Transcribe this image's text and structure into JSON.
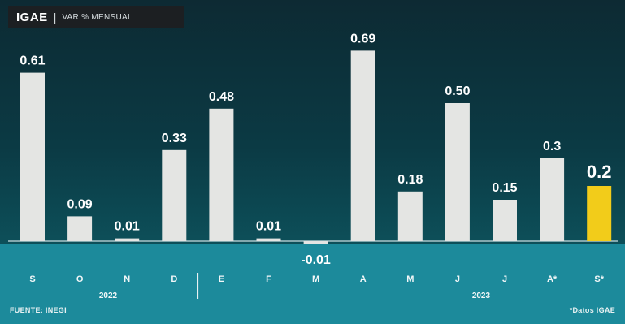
{
  "header": {
    "title": "IGAE",
    "separator": "|",
    "subtitle": "VAR % MENSUAL"
  },
  "footer": {
    "source": "FUENTE: INEGI",
    "note": "*Datos IGAE"
  },
  "colors": {
    "bar": "#e4e5e3",
    "highlight": "#f2cc1a",
    "text": "#ffffff",
    "axis_band": "#1c8a9b"
  },
  "chart_data": {
    "type": "bar",
    "title": "IGAE",
    "subtitle": "VAR % MENSUAL",
    "categories": [
      "S",
      "O",
      "N",
      "D",
      "E",
      "F",
      "M",
      "A",
      "M",
      "J",
      "J",
      "A*",
      "S*"
    ],
    "values": [
      0.61,
      0.09,
      0.01,
      0.33,
      0.48,
      0.01,
      -0.01,
      0.69,
      0.18,
      0.5,
      0.15,
      0.3,
      0.2
    ],
    "value_labels": [
      "0.61",
      "0.09",
      "0.01",
      "0.33",
      "0.48",
      "0.01",
      "-0.01",
      "0.69",
      "0.18",
      "0.50",
      "0.15",
      "0.3",
      "0.2"
    ],
    "highlight_index": 12,
    "year_groups": [
      {
        "label": "2022",
        "from": 0,
        "to": 3
      },
      {
        "label": "2023",
        "from": 4,
        "to": 12
      }
    ],
    "xlabel": "",
    "ylabel": "",
    "ylim": [
      -0.05,
      0.75
    ],
    "grid": false,
    "legend": "none"
  }
}
